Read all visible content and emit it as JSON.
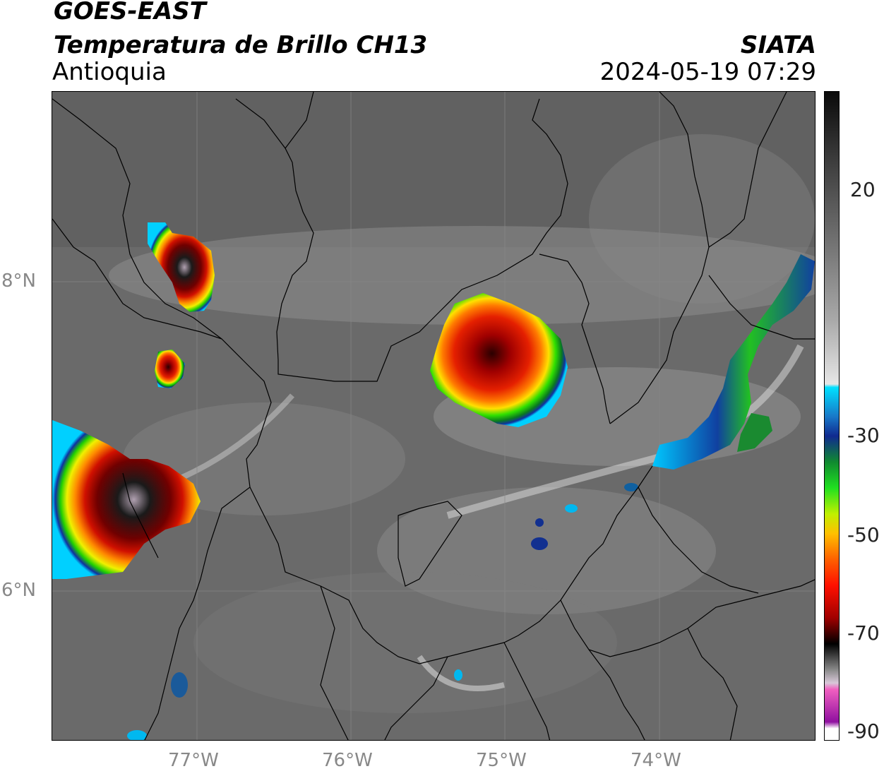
{
  "header": {
    "satellite": "GOES-EAST",
    "product": "Temperatura de Brillo CH13",
    "region": "Antioquia",
    "organization": "SIATA",
    "timestamp": "2024-05-19 07:29"
  },
  "map": {
    "lat_labels": [
      "8°N",
      "6°N"
    ],
    "lon_labels": [
      "77°W",
      "76°W",
      "75°W",
      "74°W"
    ]
  },
  "colorbar": {
    "ticks": [
      "20",
      "-30",
      "-50",
      "-70",
      "-90"
    ]
  }
}
